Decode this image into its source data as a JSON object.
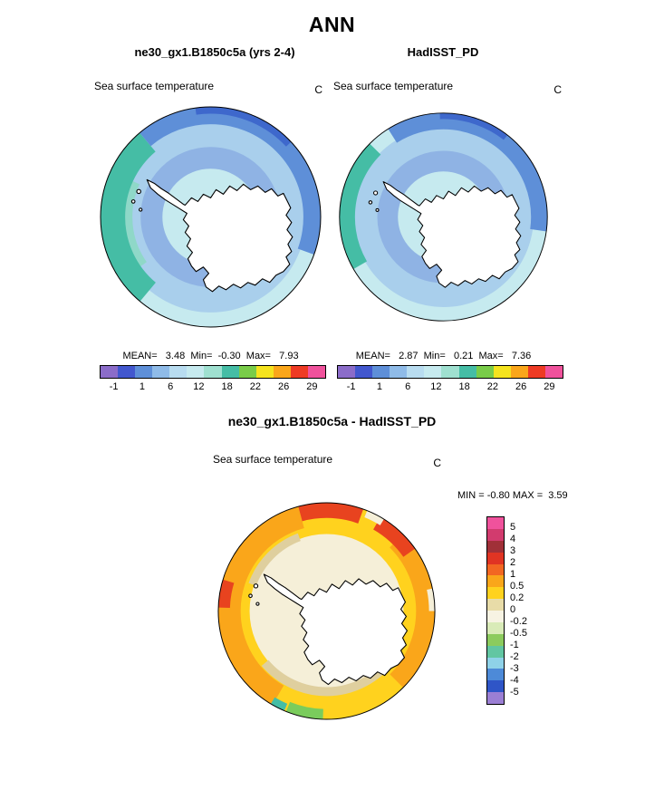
{
  "header": {
    "title": "ANN"
  },
  "panels": {
    "model": {
      "title": "ne30_gx1.B1850c5a (yrs 2-4)",
      "field_label": "Sea surface temperature",
      "units": "C",
      "stats_line": "MEAN=   3.48  Min=  -0.30  Max=   7.93"
    },
    "obs": {
      "title": "HadISST_PD",
      "field_label": "Sea surface temperature",
      "units": "C",
      "stats_line": "MEAN=   2.87  Min=   0.21  Max=   7.36"
    },
    "diff": {
      "title": "ne30_gx1.B1850c5a - HadISST_PD",
      "field_label": "Sea surface temperature",
      "units": "C",
      "stats_line": "MIN = -0.80 MAX =  3.59"
    }
  },
  "colorbar_top": {
    "ticks": [
      "-1",
      "1",
      "6",
      "12",
      "18",
      "22",
      "26",
      "29"
    ],
    "colors": [
      "#8B6CC9",
      "#4257CE",
      "#5E8FD8",
      "#8FBBE8",
      "#B8DCF0",
      "#C6EAEF",
      "#9FE0D0",
      "#45BDA5",
      "#79CC49",
      "#F5E31E",
      "#FAA61A",
      "#EE3B24",
      "#F0529C"
    ]
  },
  "colorbar_diff": {
    "labels": [
      "5",
      "4",
      "3",
      "2",
      "1",
      "0.5",
      "0.2",
      "0",
      "-0.2",
      "-0.5",
      "-1",
      "-2",
      "-3",
      "-4",
      "-5"
    ],
    "colors": [
      "#F0529C",
      "#D23B6E",
      "#A03038",
      "#E03423",
      "#F26722",
      "#FAA61A",
      "#FFD21E",
      "#E8DCA8",
      "#F7F3E3",
      "#D9EBB8",
      "#8CCB5E",
      "#62C6A2",
      "#8FD2E8",
      "#4D8AD8",
      "#2F55C7",
      "#9B7FD4"
    ]
  },
  "chart_data": [
    {
      "type": "heatmap",
      "title": "ne30_gx1.B1850c5a (yrs 2-4)",
      "variable": "Sea surface temperature",
      "units": "C",
      "projection": "south polar stereographic (Antarctica / Southern Ocean)",
      "stats": {
        "mean": 3.48,
        "min": -0.3,
        "max": 7.93
      },
      "levels": [
        -1,
        1,
        6,
        12,
        18,
        22,
        26,
        29
      ],
      "legend_position": "bottom"
    },
    {
      "type": "heatmap",
      "title": "HadISST_PD",
      "variable": "Sea surface temperature",
      "units": "C",
      "projection": "south polar stereographic (Antarctica / Southern Ocean)",
      "stats": {
        "mean": 2.87,
        "min": 0.21,
        "max": 7.36
      },
      "levels": [
        -1,
        1,
        6,
        12,
        18,
        22,
        26,
        29
      ],
      "legend_position": "bottom"
    },
    {
      "type": "heatmap",
      "title": "ne30_gx1.B1850c5a - HadISST_PD",
      "variable": "Sea surface temperature",
      "units": "C",
      "projection": "south polar stereographic (Antarctica / Southern Ocean)",
      "stats": {
        "min": -0.8,
        "max": 3.59
      },
      "levels": [
        5,
        4,
        3,
        2,
        1,
        0.5,
        0.2,
        0,
        -0.2,
        -0.5,
        -1,
        -2,
        -3,
        -4,
        -5
      ],
      "legend_position": "right"
    }
  ]
}
